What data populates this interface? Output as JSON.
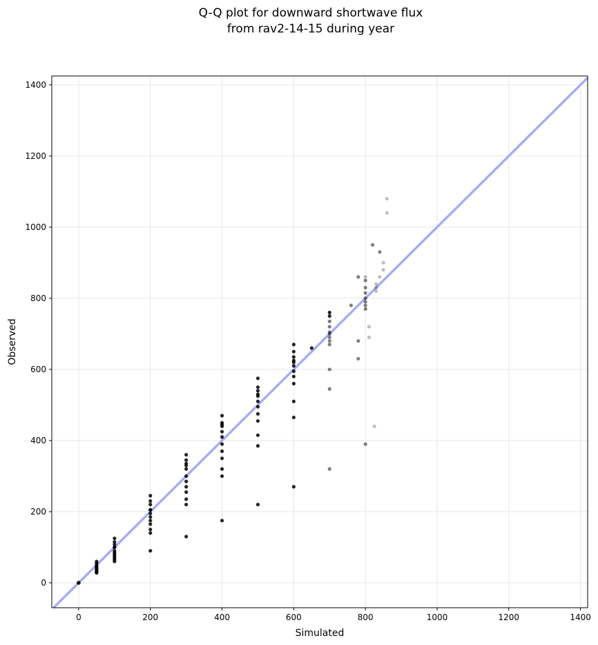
{
  "chart_data": {
    "type": "scatter",
    "title_lines": [
      "Q-Q plot for downward shortwave flux",
      "from rav2-14-15 during year"
    ],
    "xlabel": "Simulated",
    "ylabel": "Observed",
    "xlim": [
      -75,
      1420
    ],
    "ylim": [
      -70,
      1425
    ],
    "xticks": [
      0,
      200,
      400,
      600,
      800,
      1000,
      1200,
      1400
    ],
    "yticks": [
      0,
      200,
      400,
      600,
      800,
      1000,
      1200,
      1400
    ],
    "grid": true,
    "point_color": "#000000",
    "reference_line": {
      "type": "1:1",
      "color": "#aaaaf5"
    },
    "series": [
      {
        "x": [
          0,
          50,
          100,
          200,
          300,
          400,
          500,
          600,
          700,
          780,
          820,
          860
        ],
        "y": [
          0,
          60,
          125,
          245,
          360,
          470,
          575,
          670,
          760,
          860,
          950,
          1080
        ]
      },
      {
        "x": [
          0,
          50,
          100,
          200,
          300,
          400,
          500,
          600,
          700,
          800,
          840,
          860
        ],
        "y": [
          0,
          55,
          115,
          230,
          345,
          450,
          550,
          650,
          750,
          850,
          930,
          1040
        ]
      },
      {
        "x": [
          0,
          50,
          100,
          200,
          300,
          400,
          500,
          600,
          700,
          800,
          850
        ],
        "y": [
          0,
          50,
          108,
          220,
          335,
          440,
          540,
          635,
          735,
          830,
          900
        ]
      },
      {
        "x": [
          0,
          50,
          100,
          200,
          300,
          400,
          500,
          600,
          700,
          800,
          850
        ],
        "y": [
          0,
          45,
          100,
          205,
          320,
          425,
          525,
          625,
          720,
          815,
          880
        ]
      },
      {
        "x": [
          0,
          50,
          100,
          200,
          300,
          400,
          500,
          600,
          700,
          800,
          840
        ],
        "y": [
          0,
          40,
          90,
          195,
          300,
          410,
          510,
          610,
          705,
          800,
          860
        ]
      },
      {
        "x": [
          0,
          50,
          100,
          200,
          300,
          400,
          500,
          600,
          700,
          800,
          830
        ],
        "y": [
          0,
          38,
          85,
          185,
          285,
          390,
          495,
          595,
          690,
          790,
          840
        ]
      },
      {
        "x": [
          0,
          50,
          100,
          200,
          300,
          400,
          500,
          600,
          700,
          800,
          830
        ],
        "y": [
          0,
          35,
          80,
          175,
          270,
          370,
          475,
          580,
          680,
          780,
          830
        ]
      },
      {
        "x": [
          0,
          50,
          100,
          200,
          300,
          400,
          500,
          600,
          700,
          800,
          830
        ],
        "y": [
          0,
          32,
          75,
          165,
          255,
          350,
          455,
          560,
          670,
          770,
          820
        ]
      },
      {
        "x": [
          0,
          50,
          100,
          200,
          300,
          400,
          500,
          600,
          700,
          780,
          810
        ],
        "y": [
          0,
          30,
          70,
          150,
          235,
          320,
          415,
          510,
          600,
          680,
          720
        ]
      },
      {
        "x": [
          0,
          50,
          100,
          200,
          300,
          400,
          500,
          600,
          700,
          780,
          810
        ],
        "y": [
          0,
          28,
          65,
          140,
          220,
          300,
          385,
          465,
          545,
          630,
          690
        ]
      },
      {
        "x": [
          0,
          50,
          100,
          200,
          300,
          400,
          500,
          600,
          700,
          800,
          825
        ],
        "y": [
          0,
          30,
          60,
          90,
          130,
          175,
          220,
          270,
          320,
          390,
          440
        ]
      },
      {
        "x": [
          0,
          50,
          100,
          200,
          300,
          400,
          500,
          600,
          650,
          700,
          760,
          800
        ],
        "y": [
          0,
          45,
          100,
          205,
          330,
          445,
          530,
          620,
          660,
          700,
          780,
          860
        ]
      }
    ]
  }
}
